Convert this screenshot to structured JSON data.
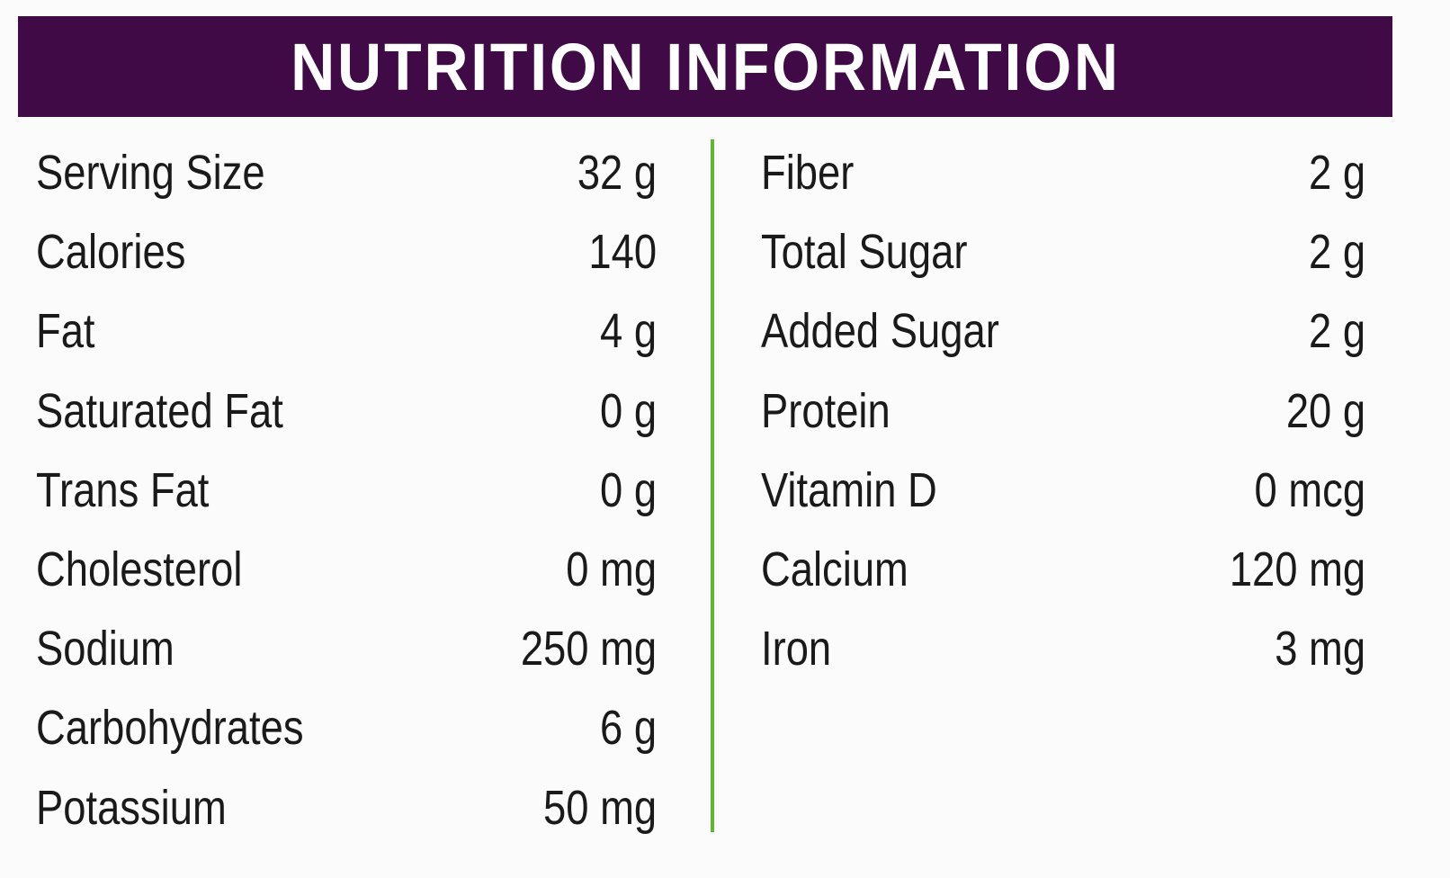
{
  "header": {
    "title": "NUTRITION INFORMATION"
  },
  "left": {
    "rows": [
      [
        "Serving Size",
        "32 g"
      ],
      [
        "Calories",
        "140"
      ],
      [
        "Fat",
        "4 g"
      ],
      [
        "Saturated Fat",
        "0 g"
      ],
      [
        "Trans Fat",
        "0 g"
      ],
      [
        "Cholesterol",
        "0 mg"
      ],
      [
        "Sodium",
        "250 mg"
      ],
      [
        "Carbohydrates",
        "6 g"
      ],
      [
        "Potassium",
        "50 mg"
      ]
    ]
  },
  "right": {
    "rows": [
      [
        "Fiber",
        "2 g"
      ],
      [
        "Total Sugar",
        "2 g"
      ],
      [
        "Added Sugar",
        "2 g"
      ],
      [
        "Protein",
        "20 g"
      ],
      [
        "Vitamin D",
        "0 mcg"
      ],
      [
        "Calcium",
        "120 mg"
      ],
      [
        "Iron",
        "3 mg"
      ]
    ]
  }
}
